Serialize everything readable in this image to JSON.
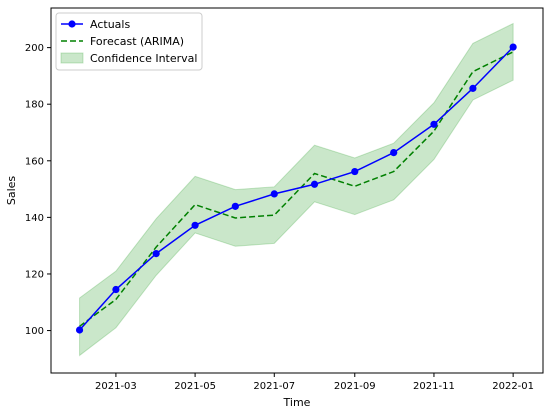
{
  "chart_data": {
    "type": "line",
    "xlabel": "Time",
    "ylabel": "Sales",
    "x": [
      "2021-02-01",
      "2021-03-01",
      "2021-04-01",
      "2021-05-01",
      "2021-06-01",
      "2021-07-01",
      "2021-08-01",
      "2021-09-01",
      "2021-10-01",
      "2021-11-01",
      "2021-12-01",
      "2022-01-01"
    ],
    "series": [
      {
        "name": "Actuals",
        "style": "solid line with circle markers",
        "color": "#0000ff",
        "values": [
          100.2,
          114.5,
          127.2,
          137.2,
          143.9,
          148.3,
          151.7,
          156.2,
          162.9,
          172.9,
          185.6,
          200.2
        ]
      },
      {
        "name": "Forecast (ARIMA)",
        "style": "dashed line",
        "color": "#008000",
        "values": [
          101.5,
          111.0,
          129.5,
          144.5,
          139.8,
          140.8,
          155.5,
          151.0,
          156.2,
          170.5,
          191.5,
          198.5
        ]
      }
    ],
    "confidence_interval": {
      "name": "Confidence Interval",
      "color": "#2ca02c",
      "lower": [
        91.2,
        101.0,
        119.5,
        134.5,
        129.8,
        130.8,
        145.5,
        141.0,
        146.2,
        160.5,
        181.5,
        188.5
      ],
      "upper": [
        111.5,
        121.0,
        139.5,
        154.5,
        149.8,
        150.8,
        165.5,
        161.0,
        166.2,
        180.5,
        201.5,
        208.5
      ]
    },
    "xticks": [
      {
        "date": "2021-03-01",
        "label": "2021-03"
      },
      {
        "date": "2021-05-01",
        "label": "2021-05"
      },
      {
        "date": "2021-07-01",
        "label": "2021-07"
      },
      {
        "date": "2021-09-01",
        "label": "2021-09"
      },
      {
        "date": "2021-11-01",
        "label": "2021-11"
      },
      {
        "date": "2022-01-01",
        "label": "2022-01"
      }
    ],
    "yticks": [
      100,
      120,
      140,
      160,
      180,
      200
    ],
    "xlim": [
      "2021-01-10",
      "2022-01-24"
    ],
    "ylim": [
      85,
      214
    ],
    "grid": false,
    "legend_placement": "upper-left"
  }
}
